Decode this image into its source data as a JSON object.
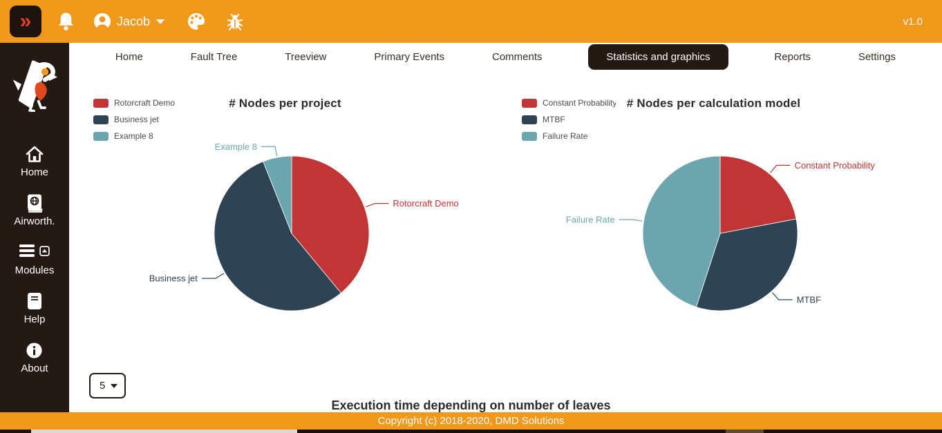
{
  "topbar": {
    "collapse_glyph": "»",
    "user_name": "Jacob",
    "version": "v1.0"
  },
  "sidebar": {
    "items": [
      {
        "label": "Home",
        "icon": "home-icon"
      },
      {
        "label": "Airworth.",
        "icon": "airworthiness-icon"
      },
      {
        "label": "Modules",
        "icon": "modules-icon"
      },
      {
        "label": "Help",
        "icon": "help-icon"
      },
      {
        "label": "About",
        "icon": "about-icon"
      }
    ]
  },
  "tabs": {
    "items": [
      "Home",
      "Fault Tree",
      "Treeview",
      "Primary Events",
      "Comments",
      "Statistics and graphics",
      "Reports",
      "Settings"
    ],
    "active": "Statistics and graphics"
  },
  "chart_data": [
    {
      "type": "pie",
      "title": "# Nodes per project",
      "slices": [
        {
          "label": "Rotorcraft Demo",
          "value_pct": 39,
          "color": "#C13536"
        },
        {
          "label": "Business jet",
          "value_pct": 55,
          "color": "#2E4454"
        },
        {
          "label": "Example 8",
          "value_pct": 6,
          "color": "#6BA6AE"
        }
      ],
      "legend_position": "top-left",
      "labels": "outside-with-leader-lines",
      "start_angle": "top",
      "direction": "clockwise"
    },
    {
      "type": "pie",
      "title": "# Nodes per calculation model",
      "slices": [
        {
          "label": "Constant Probability",
          "value_pct": 22,
          "color": "#C13536"
        },
        {
          "label": "MTBF",
          "value_pct": 33,
          "color": "#2E4454"
        },
        {
          "label": "Failure Rate",
          "value_pct": 45,
          "color": "#6BA6AE"
        }
      ],
      "legend_position": "top-left",
      "labels": "outside-with-leader-lines",
      "start_angle": "top",
      "direction": "clockwise"
    }
  ],
  "controls": {
    "page_size": "5"
  },
  "section_heading": "Execution time depending on number of leaves",
  "footer": {
    "text": "Copyright (c) 2018-2020, DMD Solutions"
  },
  "theme": {
    "orange": "#F2981B",
    "dark": "#251A13",
    "red_accent": "#E8402C",
    "pie_red": "#C13536",
    "pie_navy": "#2E4454",
    "pie_teal": "#6BA6AE"
  }
}
